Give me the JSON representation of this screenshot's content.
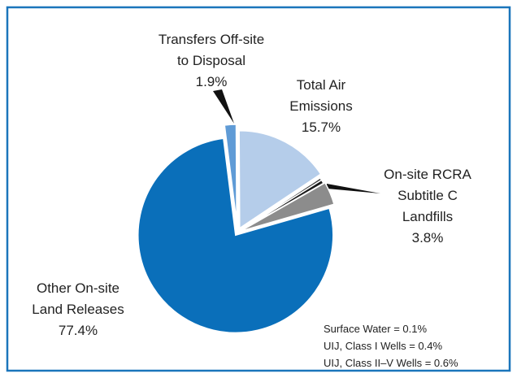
{
  "chart_data": {
    "type": "pie",
    "categories": [
      "Transfers Off-site to Disposal",
      "Total Air Emissions",
      "Surface Water = 0.1%",
      "UIJ, Class I Wells = 0.4%",
      "UIJ, Class II–V Wells = 0.6%",
      "On-site RCRA Subtitle C Landfills",
      "Other On-site Land Releases"
    ],
    "values": [
      1.9,
      15.7,
      0.1,
      0.4,
      0.6,
      3.8,
      77.4
    ],
    "value_labels": [
      "1.9%",
      "15.7%",
      null,
      null,
      null,
      "3.8%",
      "77.4%"
    ],
    "colors": [
      "#5f9bd6",
      "#b5cdea",
      "#1a1a1a",
      "#3a3a3a",
      "#1a1a1a",
      "#8c8c8c",
      "#0a6fba"
    ]
  }
}
